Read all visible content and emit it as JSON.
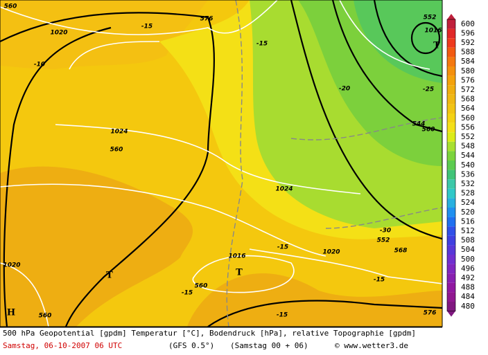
{
  "map_labels": [
    "560",
    "1020",
    "-10",
    "-15",
    "576",
    "-15",
    "1024",
    "560",
    "1024",
    "-20",
    "552",
    "1016",
    "T",
    "-25",
    "544",
    "560",
    "-30",
    "552",
    "568",
    "1020",
    "1016",
    "-15",
    "T",
    "T",
    "1020",
    "-15",
    "560",
    "-15",
    "-15",
    "576",
    "H",
    "560"
  ],
  "scale": {
    "labels": [
      "600",
      "596",
      "592",
      "588",
      "584",
      "580",
      "576",
      "572",
      "568",
      "564",
      "560",
      "556",
      "552",
      "548",
      "544",
      "540",
      "536",
      "532",
      "528",
      "524",
      "520",
      "516",
      "512",
      "508",
      "504",
      "500",
      "496",
      "492",
      "488",
      "484",
      "480"
    ],
    "colors": [
      "#c0203c",
      "#e02828",
      "#ee3a1e",
      "#f25a12",
      "#f47810",
      "#f4900e",
      "#f4a20c",
      "#f0ae10",
      "#f0b814",
      "#f2c414",
      "#f4d214",
      "#f4e018",
      "#dcec18",
      "#a8e030",
      "#7cd43c",
      "#5ccc50",
      "#40c478",
      "#3cc8a8",
      "#30c8c8",
      "#28b0e0",
      "#2090f0",
      "#2070f0",
      "#3050e8",
      "#4040e0",
      "#5838d8",
      "#7030d0",
      "#8028c0",
      "#8820b0",
      "#9018a0",
      "#901890",
      "#801880"
    ]
  },
  "footer": {
    "line1": "500 hPa Geopotential [gpdm] Temperatur [°C], Bodendruck [hPa], relative Topographie [gpdm]",
    "date": "Samstag, 06-10-2007  06 UTC",
    "model": "(GFS 0.5°)",
    "run": "(Samstag 00 + 06)",
    "credit": "© www.wetter3.de"
  }
}
